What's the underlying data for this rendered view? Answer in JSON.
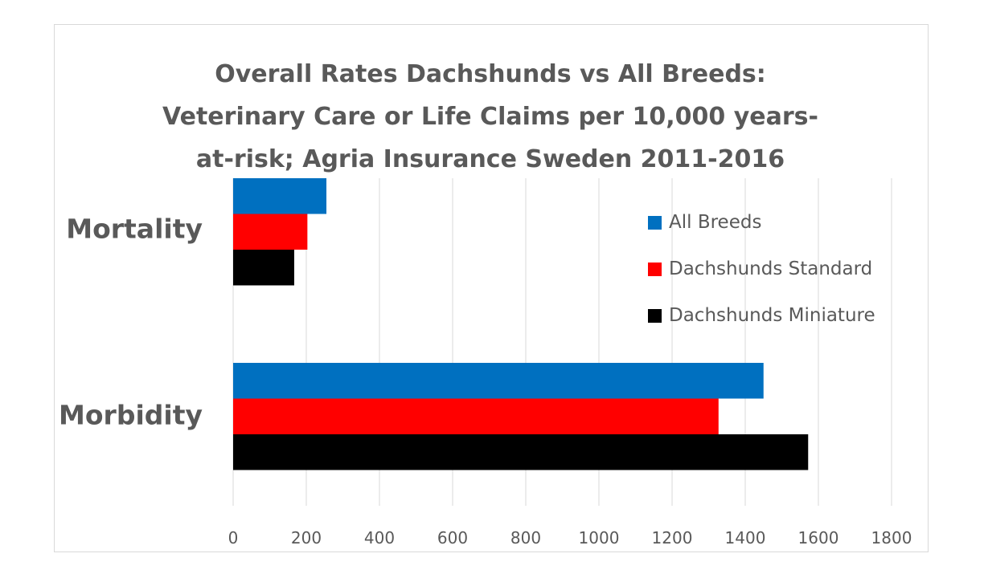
{
  "chart_data": {
    "type": "bar",
    "orientation": "horizontal",
    "title": "Overall Rates Dachshunds vs All Breeds: Veterinary Care or Life Claims per 10,000 years-at-risk; Agria Insurance Sweden  2011-2016",
    "title_lines": [
      "Overall Rates Dachshunds vs All Breeds:",
      "Veterinary Care or Life Claims per 10,000 years-",
      "at-risk; Agria Insurance Sweden  2011-2016"
    ],
    "categories": [
      "Mortality",
      "Morbidity"
    ],
    "series": [
      {
        "name": "All Breeds",
        "color": "#0070C0",
        "values": [
          255,
          1450
        ]
      },
      {
        "name": "Dachshunds Standard",
        "color": "#FF0000",
        "values": [
          203,
          1327
        ]
      },
      {
        "name": "Dachshunds Miniature",
        "color": "#000000",
        "values": [
          167,
          1572
        ]
      }
    ],
    "xlim": [
      0,
      1800
    ],
    "xticks": [
      "0",
      "200",
      "400",
      "600",
      "800",
      "1000",
      "1200",
      "1400",
      "1600",
      "1800"
    ],
    "xtick_values": [
      0,
      200,
      400,
      600,
      800,
      1000,
      1200,
      1400,
      1600,
      1800
    ],
    "grid": true,
    "gridline_color": "#d9d9d9",
    "legend_position": "right"
  }
}
